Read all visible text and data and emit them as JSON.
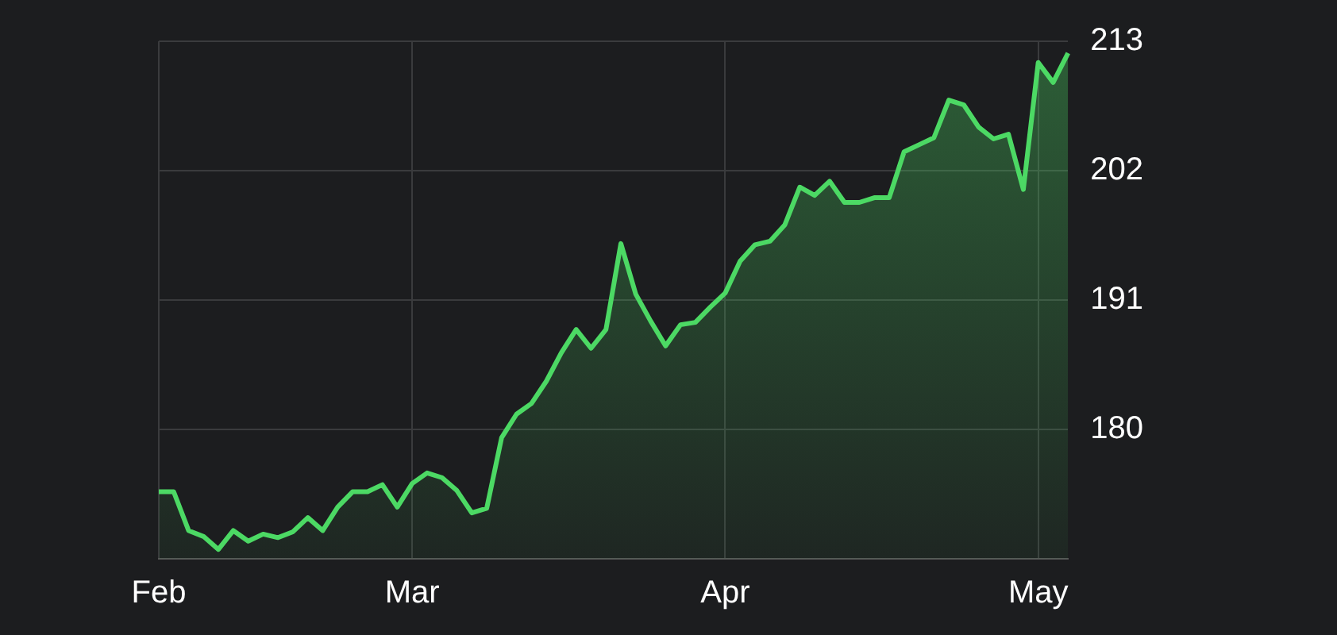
{
  "chart_data": {
    "type": "area",
    "categories": [
      "Feb",
      null,
      null,
      null,
      null,
      null,
      null,
      null,
      null,
      null,
      null,
      null,
      null,
      null,
      null,
      null,
      null,
      "Mar",
      null,
      null,
      null,
      null,
      null,
      null,
      null,
      null,
      null,
      null,
      null,
      null,
      null,
      null,
      null,
      null,
      null,
      null,
      null,
      null,
      "Apr",
      null,
      null,
      null,
      null,
      null,
      null,
      null,
      null,
      null,
      null,
      null,
      null,
      null,
      null,
      null,
      null,
      null,
      null,
      null,
      null,
      "May",
      null,
      null
    ],
    "series": [
      {
        "color": "#4cd964",
        "values": [
          174.7,
          174.7,
          171.4,
          170.9,
          169.8,
          171.4,
          170.5,
          171.1,
          170.8,
          171.3,
          172.5,
          171.4,
          173.4,
          174.7,
          174.7,
          175.3,
          173.4,
          175.4,
          176.3,
          175.9,
          174.8,
          172.9,
          173.3,
          179.3,
          181.3,
          182.2,
          184.1,
          186.5,
          188.5,
          186.9,
          188.5,
          195.8,
          191.5,
          189.2,
          187.1,
          188.9,
          189.1,
          190.4,
          191.6,
          194.3,
          195.7,
          196.0,
          197.4,
          200.6,
          199.9,
          201.1,
          199.3,
          199.3,
          199.7,
          199.7,
          203.6,
          204.2,
          204.8,
          208.0,
          207.6,
          205.7,
          204.7,
          205.1,
          200.4,
          211.2,
          209.5,
          212.0
        ]
      }
    ],
    "ylim": [
      169,
      213
    ],
    "yticks": [
      180,
      191,
      202,
      213
    ],
    "grid": true,
    "legend": false
  }
}
